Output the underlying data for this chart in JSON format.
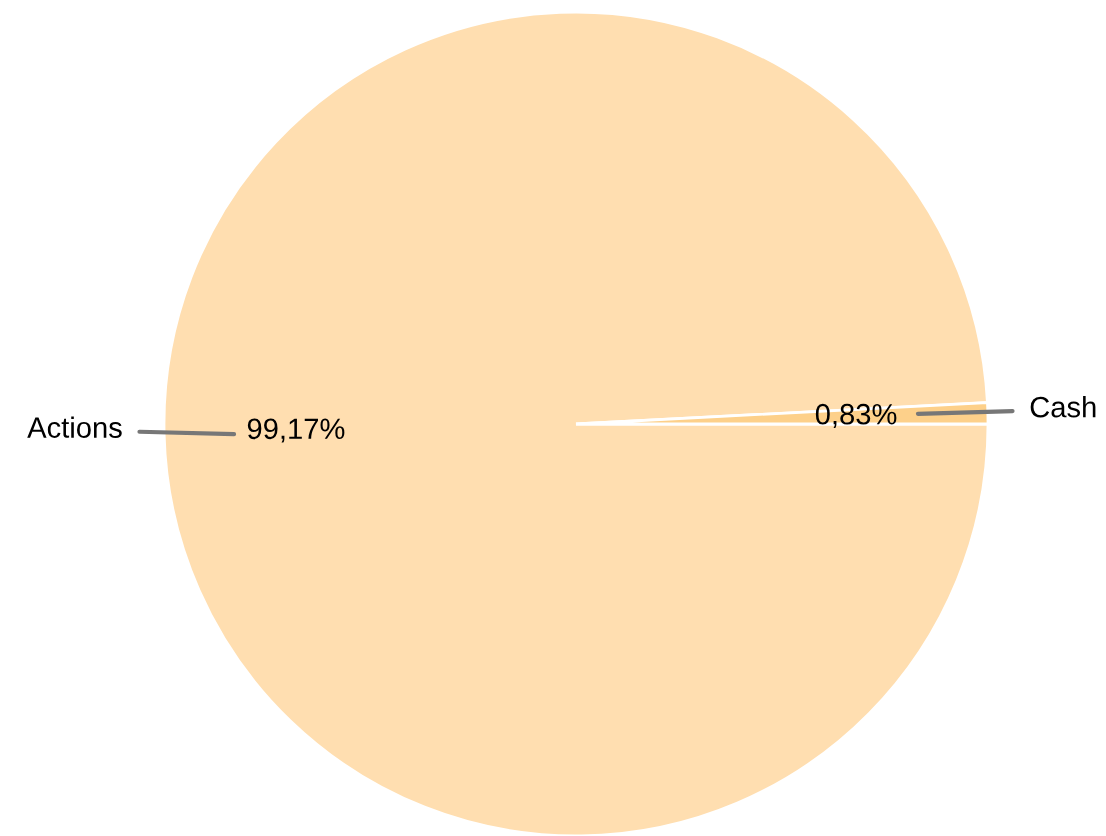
{
  "chart_data": {
    "type": "pie",
    "categories": [
      "Actions",
      "Cash"
    ],
    "values": [
      99.17,
      0.83
    ],
    "colors": [
      "#ffdeb0",
      "#fdd08a"
    ],
    "value_labels": [
      "99,17%",
      "0,83%"
    ],
    "legend": false
  }
}
